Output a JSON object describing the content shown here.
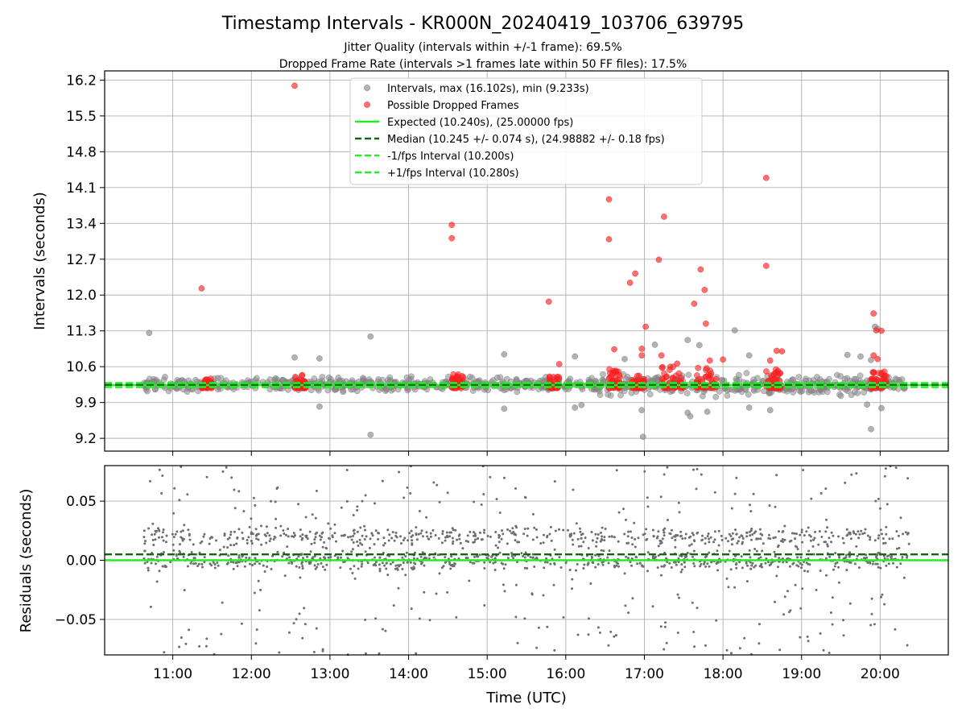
{
  "chart_data": [
    {
      "type": "scatter",
      "title": "Timestamp Intervals - KR000N_20240419_103706_639795",
      "subtitle_lines": [
        "Jitter Quality (intervals within +/-1 frame): 69.5%",
        "Dropped Frame Rate (intervals >1 frames late within 50 FF files): 17.5%"
      ],
      "xlabel": "",
      "ylabel": "Intervals (seconds)",
      "y_ticks": [
        "9.2",
        "9.9",
        "10.6",
        "11.3",
        "12.0",
        "12.7",
        "13.4",
        "14.1",
        "14.8",
        "15.5",
        "16.2"
      ],
      "ylim": [
        8.95,
        16.38
      ],
      "xlim": [
        "10:08",
        "20:52"
      ],
      "grid": true,
      "legend_position": "upper center",
      "legend": [
        {
          "label": "Intervals, max (16.102s), min (9.233s)",
          "style": "gray-dot"
        },
        {
          "label": "Possible Dropped Frames",
          "style": "red-dot"
        },
        {
          "label": "Expected (10.240s), (25.00000 fps)",
          "style": "green-solid"
        },
        {
          "label": "Median (10.245 +/- 0.074 s), (24.98882 +/- 0.18 fps)",
          "style": "darkgreen-dashed"
        },
        {
          "label": "-1/fps Interval (10.200s)",
          "style": "lime-dashed"
        },
        {
          "label": "+1/fps Interval (10.280s)",
          "style": "lime-dashed"
        }
      ],
      "reference_lines": [
        {
          "name": "Expected",
          "y": 10.24,
          "color": "#22ee22",
          "dash": "solid"
        },
        {
          "name": "Median",
          "y": 10.245,
          "color": "#116611",
          "dash": "dashed"
        },
        {
          "name": "-1/fps Interval",
          "y": 10.2,
          "color": "#22ee22",
          "dash": "dashed"
        },
        {
          "name": "+1/fps Interval",
          "y": 10.28,
          "color": "#22ee22",
          "dash": "dashed"
        }
      ],
      "series": [
        {
          "name": "Intervals",
          "color": "#888888",
          "points": [
            [
              "10:42",
              11.26
            ],
            [
              "12:33",
              10.78
            ],
            [
              "12:52",
              10.76
            ],
            [
              "12:52",
              9.82
            ],
            [
              "13:31",
              11.19
            ],
            [
              "13:31",
              9.27
            ],
            [
              "15:13",
              10.84
            ],
            [
              "15:13",
              9.78
            ],
            [
              "16:07",
              10.8
            ],
            [
              "16:07",
              9.8
            ],
            [
              "16:12",
              9.85
            ],
            [
              "16:45",
              10.75
            ],
            [
              "16:58",
              9.75
            ],
            [
              "16:59",
              9.23
            ],
            [
              "17:08",
              11.03
            ],
            [
              "17:33",
              11.12
            ],
            [
              "17:33",
              9.7
            ],
            [
              "17:35",
              9.63
            ],
            [
              "17:42",
              11.02
            ],
            [
              "17:48",
              9.72
            ],
            [
              "18:09",
              11.31
            ],
            [
              "18:20",
              10.82
            ],
            [
              "18:20",
              9.8
            ],
            [
              "18:36",
              9.75
            ],
            [
              "19:35",
              10.83
            ],
            [
              "19:45",
              10.8
            ],
            [
              "19:50",
              9.86
            ],
            [
              "19:53",
              10.73
            ],
            [
              "19:53",
              9.38
            ],
            [
              "19:56",
              11.38
            ],
            [
              "19:58",
              11.34
            ],
            [
              "20:01",
              9.79
            ]
          ]
        },
        {
          "name": "Possible Dropped Frames",
          "color": "#ff2222",
          "points": [
            [
              "11:22",
              12.13
            ],
            [
              "12:33",
              16.09
            ],
            [
              "14:33",
              13.37
            ],
            [
              "14:33",
              13.11
            ],
            [
              "15:47",
              11.87
            ],
            [
              "15:55",
              10.65
            ],
            [
              "16:33",
              13.87
            ],
            [
              "16:33",
              13.09
            ],
            [
              "16:37",
              10.94
            ],
            [
              "16:49",
              12.24
            ],
            [
              "16:53",
              12.42
            ],
            [
              "16:58",
              10.82
            ],
            [
              "16:58",
              10.95
            ],
            [
              "17:01",
              11.38
            ],
            [
              "17:11",
              12.69
            ],
            [
              "17:15",
              13.53
            ],
            [
              "17:13",
              10.82
            ],
            [
              "17:25",
              10.66
            ],
            [
              "17:38",
              11.83
            ],
            [
              "17:43",
              12.5
            ],
            [
              "17:46",
              12.1
            ],
            [
              "17:47",
              11.44
            ],
            [
              "17:50",
              10.72
            ],
            [
              "18:00",
              10.74
            ],
            [
              "18:36",
              10.72
            ],
            [
              "18:33",
              14.29
            ],
            [
              "18:33",
              12.57
            ],
            [
              "18:41",
              10.91
            ],
            [
              "18:45",
              10.9
            ],
            [
              "19:55",
              11.64
            ],
            [
              "19:57",
              11.31
            ],
            [
              "20:01",
              11.3
            ],
            [
              "19:55",
              10.82
            ],
            [
              "19:58",
              10.75
            ]
          ],
          "clusters": [
            {
              "from": "11:22",
              "to": "11:30",
              "y_min": 10.18,
              "y_max": 10.37
            },
            {
              "from": "12:33",
              "to": "12:42",
              "y_min": 10.18,
              "y_max": 10.48
            },
            {
              "from": "14:33",
              "to": "14:42",
              "y_min": 10.18,
              "y_max": 10.45
            },
            {
              "from": "15:47",
              "to": "15:55",
              "y_min": 10.18,
              "y_max": 10.42
            },
            {
              "from": "16:33",
              "to": "16:42",
              "y_min": 10.18,
              "y_max": 10.55
            },
            {
              "from": "16:50",
              "to": "17:00",
              "y_min": 10.18,
              "y_max": 10.45
            },
            {
              "from": "17:13",
              "to": "17:30",
              "y_min": 10.18,
              "y_max": 10.6
            },
            {
              "from": "17:40",
              "to": "17:55",
              "y_min": 10.18,
              "y_max": 10.6
            },
            {
              "from": "18:33",
              "to": "18:45",
              "y_min": 10.18,
              "y_max": 10.55
            },
            {
              "from": "19:53",
              "to": "20:05",
              "y_min": 10.18,
              "y_max": 10.55
            }
          ]
        }
      ],
      "dense_band": {
        "from": "10:38",
        "to": "20:20",
        "y_center": 10.25,
        "spread": 0.1
      }
    },
    {
      "type": "scatter",
      "xlabel": "Time (UTC)",
      "ylabel": "Residuals (seconds)",
      "x_ticks": [
        "11:00",
        "12:00",
        "13:00",
        "14:00",
        "15:00",
        "16:00",
        "17:00",
        "18:00",
        "19:00",
        "20:00"
      ],
      "y_ticks": [
        "0.05",
        "0.00",
        "−0.05"
      ],
      "ylim": [
        -0.08,
        0.08
      ],
      "xlim": [
        "10:08",
        "20:52"
      ],
      "grid": true,
      "reference_lines": [
        {
          "name": "Expected",
          "y": 0.0,
          "color": "#22ee22",
          "dash": "solid"
        },
        {
          "name": "Median",
          "y": 0.005,
          "color": "#116611",
          "dash": "dashed"
        }
      ],
      "series": [
        {
          "name": "Residuals",
          "color": "#6e6e6e",
          "x_range": [
            "10:38",
            "20:22"
          ],
          "bands": [
            0.0,
            0.02
          ],
          "typical_spread": 0.004,
          "outlier_spread": 0.08
        }
      ]
    }
  ]
}
